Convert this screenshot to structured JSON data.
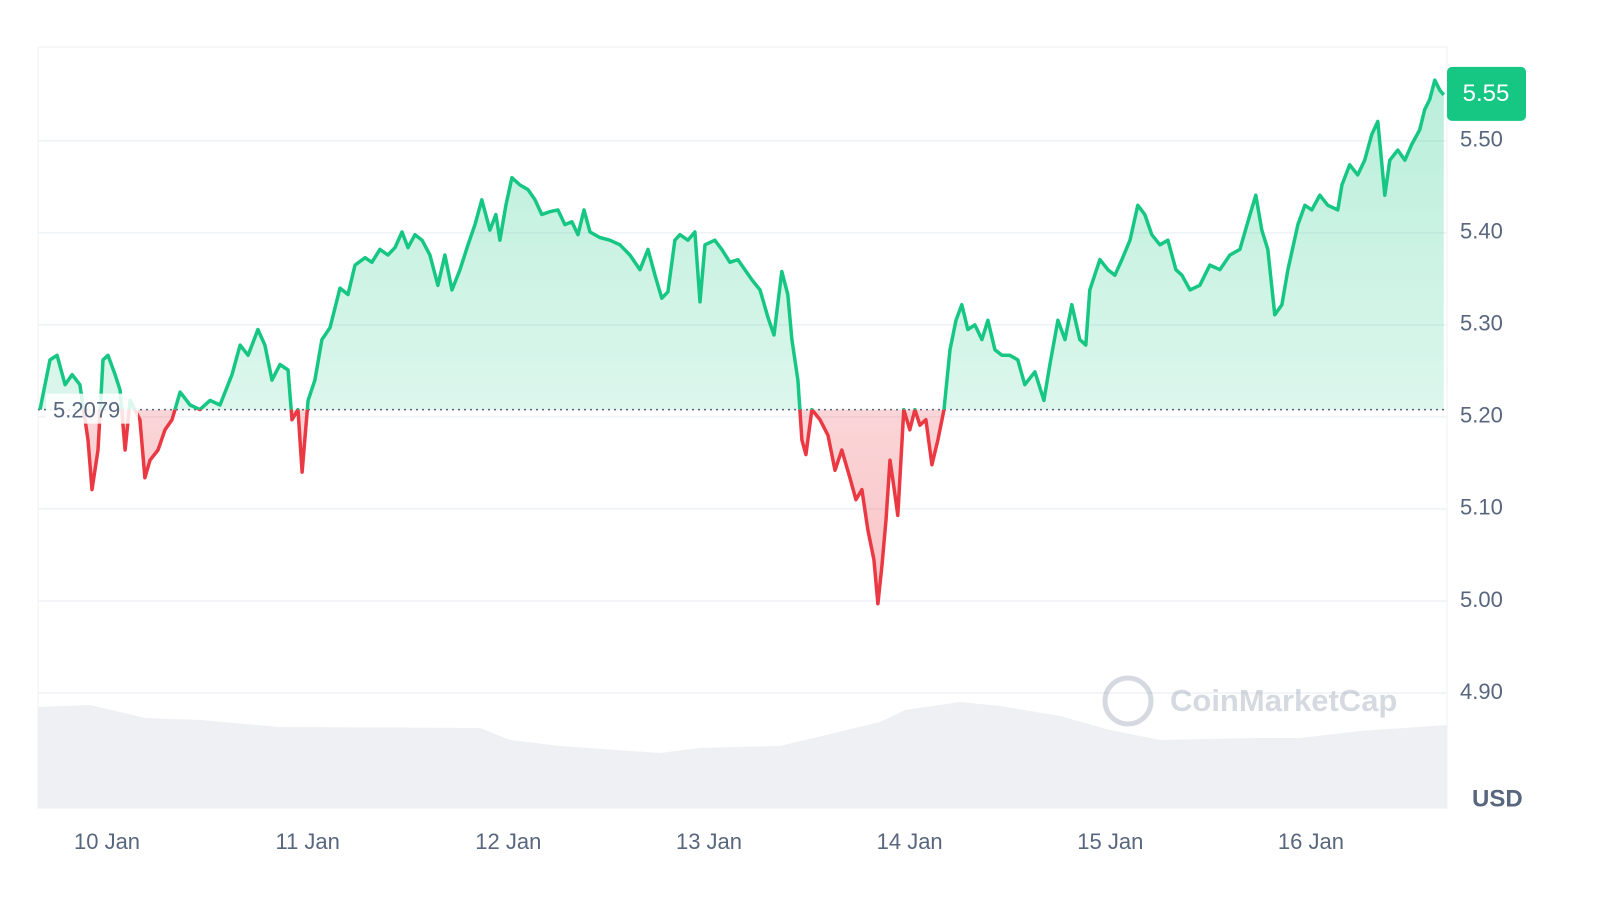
{
  "chart_data": {
    "type": "line",
    "color": "#16c784",
    "below_color": "#ea3943",
    "grid": true,
    "baseline": 5.2079,
    "current_price": 5.55,
    "unit_label": "USD",
    "watermark": "CoinMarketCap",
    "xlim": [
      -0.344,
      6.678
    ],
    "xticks": [
      {
        "value": 0,
        "label": "10 Jan"
      },
      {
        "value": 1,
        "label": "11 Jan"
      },
      {
        "value": 2,
        "label": "12 Jan"
      },
      {
        "value": 3,
        "label": "13 Jan"
      },
      {
        "value": 4,
        "label": "14 Jan"
      },
      {
        "value": 5,
        "label": "15 Jan"
      },
      {
        "value": 6,
        "label": "16 Jan"
      }
    ],
    "ylim": [
      4.775,
      5.602
    ],
    "yticks": [
      {
        "value": 4.9,
        "label": "4.90"
      },
      {
        "value": 5.0,
        "label": "5.00"
      },
      {
        "value": 5.1,
        "label": "5.10"
      },
      {
        "value": 5.2,
        "label": "5.20"
      },
      {
        "value": 5.3,
        "label": "5.30"
      },
      {
        "value": 5.4,
        "label": "5.40"
      },
      {
        "value": 5.5,
        "label": "5.50"
      }
    ],
    "x": [
      -0.334,
      -0.284,
      -0.249,
      -0.209,
      -0.174,
      -0.135,
      -0.095,
      -0.075,
      -0.045,
      -0.02,
      0.005,
      0.04,
      0.065,
      0.09,
      0.115,
      0.164,
      0.189,
      0.214,
      0.254,
      0.289,
      0.324,
      0.364,
      0.414,
      0.463,
      0.513,
      0.563,
      0.623,
      0.663,
      0.703,
      0.752,
      0.787,
      0.822,
      0.862,
      0.902,
      0.922,
      0.952,
      0.972,
      1.002,
      1.036,
      1.071,
      1.111,
      1.161,
      1.201,
      1.236,
      1.286,
      1.32,
      1.36,
      1.4,
      1.435,
      1.47,
      1.5,
      1.535,
      1.57,
      1.609,
      1.649,
      1.684,
      1.719,
      1.759,
      1.799,
      1.834,
      1.868,
      1.908,
      1.938,
      1.958,
      1.988,
      2.018,
      2.058,
      2.098,
      2.133,
      2.167,
      2.207,
      2.247,
      2.282,
      2.317,
      2.347,
      2.377,
      2.407,
      2.456,
      2.506,
      2.556,
      2.606,
      2.656,
      2.696,
      2.731,
      2.765,
      2.795,
      2.83,
      2.855,
      2.895,
      2.93,
      2.955,
      2.98,
      3.029,
      3.064,
      3.104,
      3.144,
      3.179,
      3.214,
      3.254,
      3.294,
      3.324,
      3.363,
      3.393,
      3.413,
      3.443,
      3.463,
      3.483,
      3.513,
      3.553,
      3.593,
      3.628,
      3.662,
      3.702,
      3.732,
      3.762,
      3.792,
      3.822,
      3.842,
      3.862,
      3.882,
      3.902,
      3.922,
      3.941,
      3.971,
      4.001,
      4.026,
      4.051,
      4.081,
      4.111,
      4.141,
      4.171,
      4.201,
      4.231,
      4.26,
      4.29,
      4.325,
      4.36,
      4.39,
      4.425,
      4.46,
      4.499,
      4.539,
      4.574,
      4.624,
      4.669,
      4.699,
      4.739,
      4.774,
      4.808,
      4.848,
      4.878,
      4.898,
      4.948,
      4.988,
      5.023,
      5.058,
      5.098,
      5.137,
      5.172,
      5.207,
      5.247,
      5.287,
      5.327,
      5.357,
      5.397,
      5.446,
      5.496,
      5.546,
      5.596,
      5.646,
      5.696,
      5.725,
      5.755,
      5.785,
      5.82,
      5.855,
      5.885,
      5.935,
      5.97,
      6.004,
      6.044,
      6.084,
      6.134,
      6.154,
      6.193,
      6.233,
      6.268,
      6.303,
      6.333,
      6.368,
      6.393,
      6.433,
      6.468,
      6.502,
      6.542,
      6.567,
      6.592,
      6.617,
      6.642,
      6.662
    ],
    "values": [
      5.208,
      5.262,
      5.267,
      5.235,
      5.246,
      5.235,
      5.175,
      5.121,
      5.164,
      5.262,
      5.267,
      5.246,
      5.229,
      5.164,
      5.218,
      5.197,
      5.134,
      5.153,
      5.164,
      5.186,
      5.197,
      5.227,
      5.213,
      5.208,
      5.218,
      5.213,
      5.246,
      5.278,
      5.267,
      5.295,
      5.278,
      5.24,
      5.257,
      5.251,
      5.197,
      5.208,
      5.14,
      5.218,
      5.24,
      5.284,
      5.297,
      5.34,
      5.333,
      5.365,
      5.373,
      5.368,
      5.382,
      5.376,
      5.384,
      5.401,
      5.384,
      5.398,
      5.392,
      5.376,
      5.343,
      5.376,
      5.338,
      5.36,
      5.387,
      5.409,
      5.436,
      5.403,
      5.42,
      5.392,
      5.43,
      5.46,
      5.452,
      5.447,
      5.436,
      5.42,
      5.423,
      5.425,
      5.409,
      5.412,
      5.398,
      5.425,
      5.401,
      5.395,
      5.392,
      5.387,
      5.376,
      5.36,
      5.382,
      5.354,
      5.329,
      5.336,
      5.392,
      5.398,
      5.392,
      5.401,
      5.325,
      5.387,
      5.392,
      5.382,
      5.368,
      5.371,
      5.36,
      5.349,
      5.338,
      5.308,
      5.289,
      5.358,
      5.333,
      5.284,
      5.24,
      5.175,
      5.159,
      5.208,
      5.197,
      5.18,
      5.142,
      5.164,
      5.134,
      5.11,
      5.121,
      5.077,
      5.045,
      4.997,
      5.039,
      5.088,
      5.153,
      5.123,
      5.093,
      5.208,
      5.186,
      5.208,
      5.191,
      5.197,
      5.148,
      5.175,
      5.208,
      5.273,
      5.305,
      5.322,
      5.295,
      5.3,
      5.284,
      5.305,
      5.273,
      5.267,
      5.267,
      5.262,
      5.235,
      5.249,
      5.218,
      5.257,
      5.305,
      5.284,
      5.322,
      5.284,
      5.278,
      5.338,
      5.371,
      5.36,
      5.354,
      5.371,
      5.392,
      5.43,
      5.42,
      5.398,
      5.387,
      5.392,
      5.36,
      5.354,
      5.338,
      5.343,
      5.365,
      5.36,
      5.376,
      5.382,
      5.42,
      5.441,
      5.403,
      5.382,
      5.311,
      5.322,
      5.36,
      5.409,
      5.43,
      5.425,
      5.441,
      5.43,
      5.425,
      5.452,
      5.474,
      5.463,
      5.479,
      5.507,
      5.521,
      5.441,
      5.479,
      5.49,
      5.479,
      5.496,
      5.512,
      5.534,
      5.545,
      5.566,
      5.555,
      5.55
    ]
  }
}
